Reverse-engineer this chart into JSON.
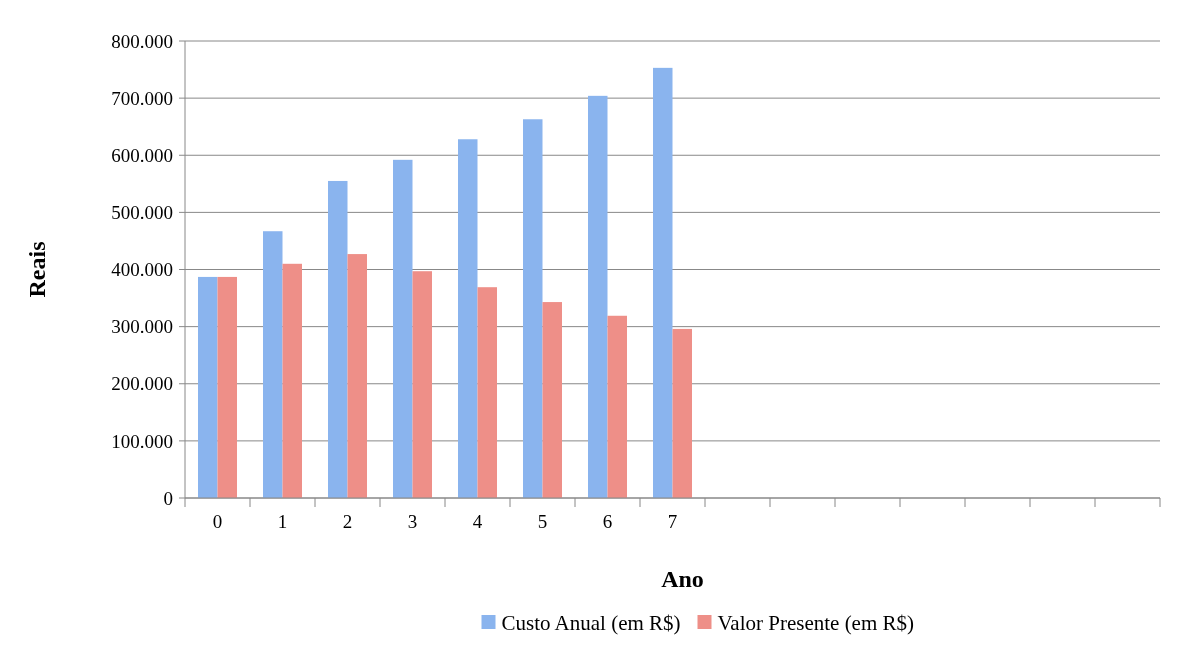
{
  "chart_data": {
    "type": "bar",
    "xlabel": "Ano",
    "ylabel": "Reais",
    "categories": [
      "0",
      "1",
      "2",
      "3",
      "4",
      "5",
      "6",
      "7",
      null,
      null,
      null,
      null,
      null,
      null,
      null
    ],
    "series": [
      {
        "name": "Custo Anual (em R$)",
        "color": "#8ab4ee",
        "values": [
          387000,
          467000,
          555000,
          592000,
          628000,
          663000,
          704000,
          753000,
          null,
          null,
          null,
          null,
          null,
          null,
          null
        ]
      },
      {
        "name": "Valor Presente (em R$)",
        "color": "#ee8f88",
        "values": [
          387000,
          410000,
          427000,
          397000,
          369000,
          343000,
          319000,
          296000,
          null,
          null,
          null,
          null,
          null,
          null,
          null
        ]
      }
    ],
    "ylim": [
      0,
      800000
    ],
    "yticks": [
      {
        "value": 0,
        "label": "0"
      },
      {
        "value": 100000,
        "label": "100.000"
      },
      {
        "value": 200000,
        "label": "200.000"
      },
      {
        "value": 300000,
        "label": "300.000"
      },
      {
        "value": 400000,
        "label": "400.000"
      },
      {
        "value": 500000,
        "label": "500.000"
      },
      {
        "value": 600000,
        "label": "600.000"
      },
      {
        "value": 700000,
        "label": "700.000"
      },
      {
        "value": 800000,
        "label": "800.000"
      }
    ],
    "grid": "y",
    "legend": "bottom"
  }
}
